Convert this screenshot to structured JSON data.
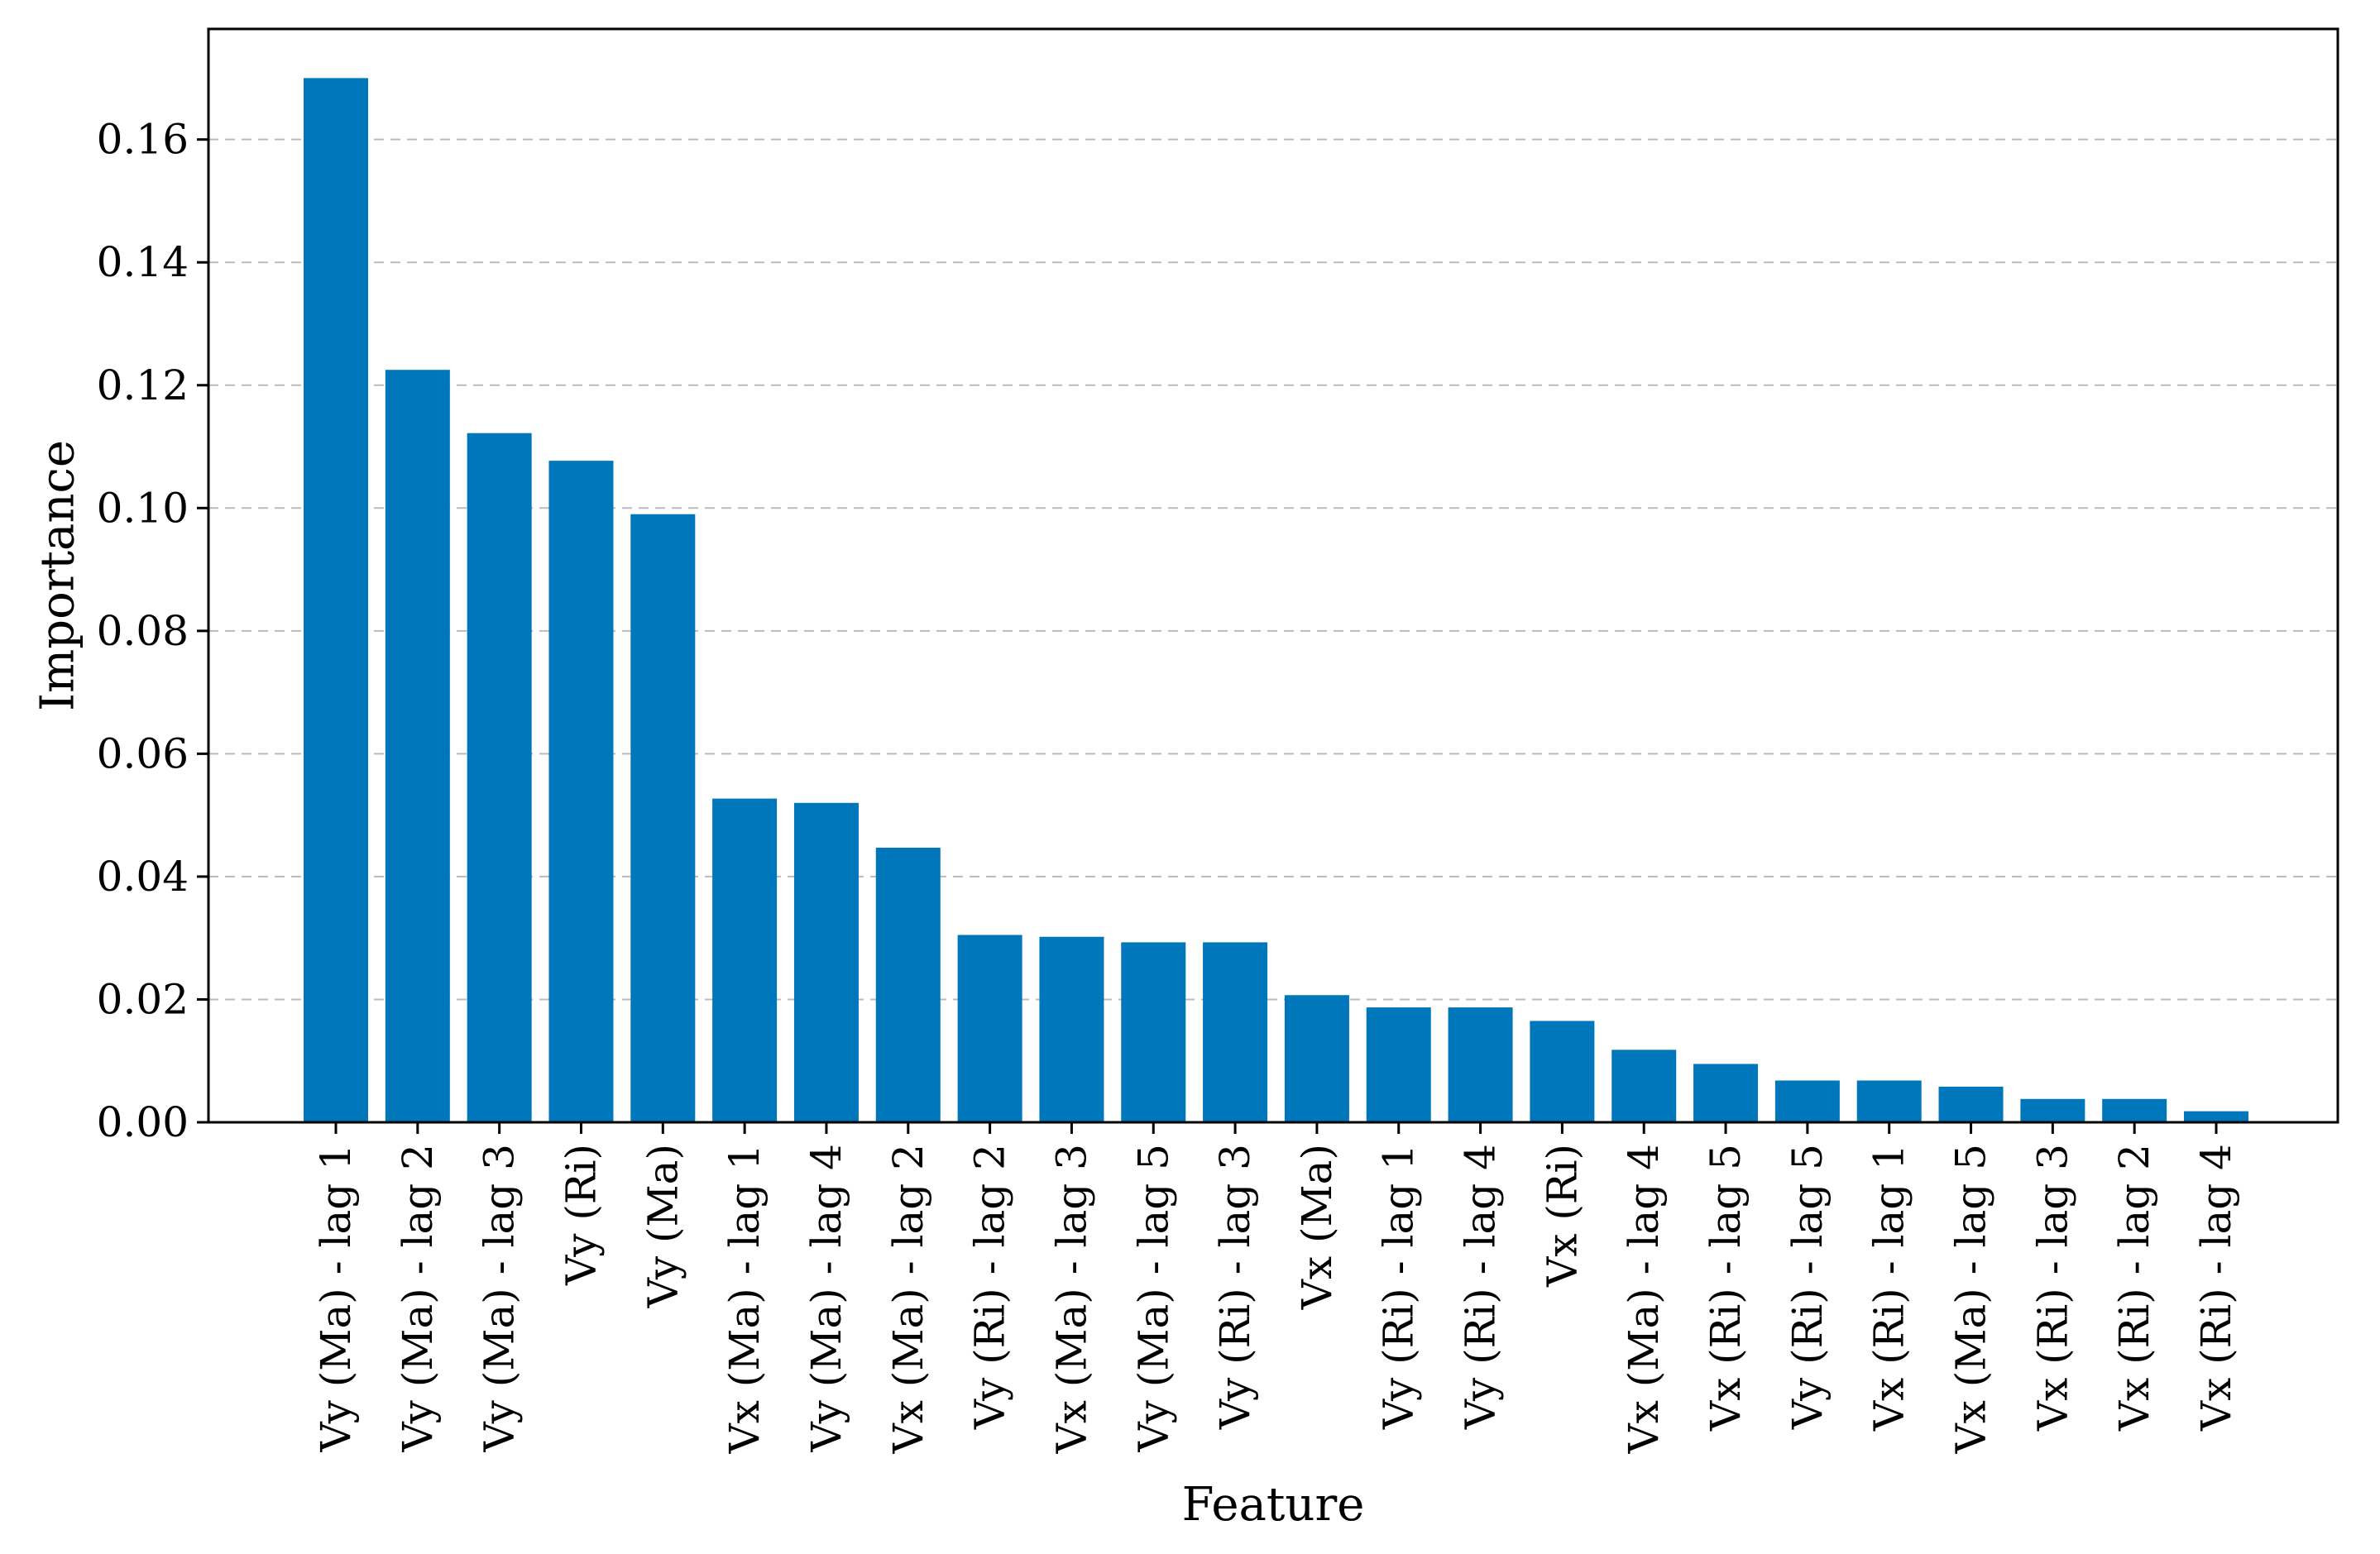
{
  "chart_data": {
    "type": "bar",
    "title": "",
    "xlabel": "Feature",
    "ylabel": "Importance",
    "ylim": [
      0,
      0.178
    ],
    "yticks": [
      "0.00",
      "0.02",
      "0.04",
      "0.06",
      "0.08",
      "0.10",
      "0.12",
      "0.14",
      "0.16"
    ],
    "grid": "horizontal dashed",
    "categories": [
      "Vy (Ma) - lag 1",
      "Vy (Ma) - lag 2",
      "Vy (Ma) - lag 3",
      "Vy (Ri)",
      "Vy (Ma)",
      "Vx (Ma) - lag 1",
      "Vy (Ma) - lag 4",
      "Vx (Ma) - lag 2",
      "Vy (Ri) - lag 2",
      "Vx (Ma) - lag 3",
      "Vy (Ma) - lag 5",
      "Vy (Ri) - lag 3",
      "Vx (Ma)",
      "Vy (Ri) - lag 1",
      "Vy (Ri) - lag 4",
      "Vx (Ri)",
      "Vx (Ma) - lag 4",
      "Vx (Ri) - lag 5",
      "Vy (Ri) - lag 5",
      "Vx (Ri) - lag 1",
      "Vx (Ma) - lag 5",
      "Vx (Ri) - lag 3",
      "Vx (Ri) - lag 2",
      "Vx (Ri) - lag 4"
    ],
    "values": [
      0.17,
      0.1225,
      0.1122,
      0.1077,
      0.099,
      0.0527,
      0.052,
      0.0447,
      0.0305,
      0.0302,
      0.0293,
      0.0293,
      0.0207,
      0.0187,
      0.0187,
      0.0165,
      0.0118,
      0.0095,
      0.0068,
      0.0068,
      0.0058,
      0.0038,
      0.0038,
      0.0018
    ],
    "colors": {
      "bar": "#0077bb",
      "grid": "#bbbbbb",
      "axis": "#000000"
    }
  }
}
